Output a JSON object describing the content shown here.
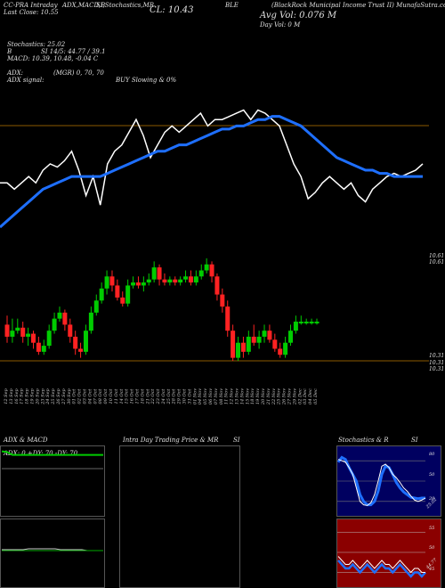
{
  "header": {
    "stock_label": "CC-PRA Intraday",
    "last_close_label": "Last Close:",
    "last_close": "10.55",
    "macd_label": "ADX,MACD,B",
    "si_label": "SI,Stochastics,MR",
    "close_label": "CL: 10.43",
    "company": "BLE",
    "company_full": "(BlackRock Municipal Income Trust II) MunafaSutra.com",
    "avg_vol": "Avg Vol: 0.076  M",
    "day_vol": "Day Vol: 0  M"
  },
  "indicators": {
    "stochastics": "Stochastics: 25.02",
    "b": "B",
    "si": "SI 14/5: 44.77 / 39.1",
    "macd": "MACD: 10.39, 10.48, -0.04  C",
    "adx": "ADX:",
    "mgr": "(MGR) 0, 70, 70",
    "adx_signal": "ADX  signal:",
    "buy": "BUY Slowing & 0%"
  },
  "labels": {
    "price_mid": "10.61",
    "price_low1": "10.31",
    "price_low2": "10.31",
    "price_low3": "10.31",
    "price_right": "10.61",
    "panel_adx": "ADX  & MACD",
    "panel_intra": "Intra  Day Trading Price  & MR",
    "panel_si": "SI",
    "panel_stoch": "Stochastics & R",
    "panel_si2": "SI",
    "adx_values": "ADX: 0  +DY: 70  -DY: 70",
    "stoch_80": "80",
    "stoch_50": "50",
    "stoch_20": "20",
    "stoch_val": "25.02",
    "rsi_55": "55",
    "rsi_50": "50",
    "rsi_45": "45",
    "rsi_val": "44.77"
  },
  "colors": {
    "up": "#00cc00",
    "down": "#ff2222",
    "ma": "#1e6fff",
    "price_line": "#ffffff",
    "ref_line": "#8b5a00",
    "rsi_bg": "#8b0000",
    "stoch_bg": "#000060"
  },
  "chart_data": {
    "type": "candlestick",
    "dates": [
      "12 Sep",
      "13 Sep",
      "16 Sep",
      "17 Sep",
      "18 Sep",
      "19 Sep",
      "20 Sep",
      "23 Sep",
      "24 Sep",
      "25 Sep",
      "26 Sep",
      "27 Sep",
      "30 Sep",
      "01 Oct",
      "02 Oct",
      "03 Oct",
      "04 Oct",
      "07 Oct",
      "08 Oct",
      "09 Oct",
      "10 Oct",
      "11 Oct",
      "14 Oct",
      "15 Oct",
      "16 Oct",
      "17 Oct",
      "18 Oct",
      "21 Oct",
      "22 Oct",
      "23 Oct",
      "24 Oct",
      "25 Oct",
      "28 Oct",
      "29 Oct",
      "30 Oct",
      "31 Oct",
      "01 Nov",
      "04 Nov",
      "05 Nov",
      "06 Nov",
      "07 Nov",
      "08 Nov",
      "11 Nov",
      "12 Nov",
      "13 Nov",
      "14 Nov",
      "15 Nov",
      "18 Nov",
      "19 Nov",
      "20 Nov",
      "21 Nov",
      "22 Nov",
      "25 Nov",
      "26 Nov",
      "27 Nov",
      "29 Nov",
      "02 Dec",
      "03 Dec",
      "04 Dec",
      "05 Dec"
    ],
    "candles": [
      [
        10.42,
        10.38,
        10.45,
        10.36
      ],
      [
        10.38,
        10.4,
        10.44,
        10.36
      ],
      [
        10.4,
        10.41,
        10.44,
        10.39
      ],
      [
        10.41,
        10.38,
        10.43,
        10.36
      ],
      [
        10.38,
        10.39,
        10.41,
        10.35
      ],
      [
        10.39,
        10.36,
        10.4,
        10.34
      ],
      [
        10.36,
        10.33,
        10.38,
        10.32
      ],
      [
        10.33,
        10.35,
        10.37,
        10.32
      ],
      [
        10.35,
        10.4,
        10.42,
        10.34
      ],
      [
        10.4,
        10.44,
        10.46,
        10.39
      ],
      [
        10.44,
        10.46,
        10.48,
        10.43
      ],
      [
        10.46,
        10.42,
        10.47,
        10.4
      ],
      [
        10.42,
        10.38,
        10.44,
        10.36
      ],
      [
        10.38,
        10.34,
        10.4,
        10.32
      ],
      [
        10.34,
        10.33,
        10.36,
        10.31
      ],
      [
        10.33,
        10.4,
        10.42,
        10.32
      ],
      [
        10.4,
        10.46,
        10.48,
        10.39
      ],
      [
        10.46,
        10.5,
        10.52,
        10.45
      ],
      [
        10.5,
        10.54,
        10.56,
        10.49
      ],
      [
        10.54,
        10.58,
        10.6,
        10.52
      ],
      [
        10.58,
        10.55,
        10.6,
        10.53
      ],
      [
        10.55,
        10.51,
        10.57,
        10.5
      ],
      [
        10.51,
        10.49,
        10.53,
        10.48
      ],
      [
        10.49,
        10.55,
        10.57,
        10.48
      ],
      [
        10.55,
        10.56,
        10.58,
        10.54
      ],
      [
        10.56,
        10.55,
        10.58,
        10.54
      ],
      [
        10.55,
        10.56,
        10.58,
        10.53
      ],
      [
        10.56,
        10.57,
        10.59,
        10.55
      ],
      [
        10.57,
        10.61,
        10.63,
        10.56
      ],
      [
        10.61,
        10.57,
        10.62,
        10.55
      ],
      [
        10.57,
        10.56,
        10.59,
        10.55
      ],
      [
        10.56,
        10.57,
        10.58,
        10.55
      ],
      [
        10.57,
        10.56,
        10.58,
        10.55
      ],
      [
        10.56,
        10.57,
        10.58,
        10.55
      ],
      [
        10.57,
        10.58,
        10.6,
        10.56
      ],
      [
        10.58,
        10.56,
        10.6,
        10.55
      ],
      [
        10.56,
        10.58,
        10.6,
        10.55
      ],
      [
        10.58,
        10.6,
        10.62,
        10.57
      ],
      [
        10.6,
        10.62,
        10.64,
        10.59
      ],
      [
        10.62,
        10.58,
        10.63,
        10.56
      ],
      [
        10.58,
        10.52,
        10.59,
        10.5
      ],
      [
        10.52,
        10.48,
        10.54,
        10.46
      ],
      [
        10.48,
        10.4,
        10.5,
        10.38
      ],
      [
        10.4,
        10.31,
        10.42,
        10.3
      ],
      [
        10.31,
        10.36,
        10.38,
        10.3
      ],
      [
        10.36,
        10.33,
        10.38,
        10.31
      ],
      [
        10.33,
        10.38,
        10.4,
        10.32
      ],
      [
        10.38,
        10.36,
        10.42,
        10.35
      ],
      [
        10.36,
        10.38,
        10.4,
        10.34
      ],
      [
        10.38,
        10.4,
        10.42,
        10.36
      ],
      [
        10.4,
        10.37,
        10.42,
        10.36
      ],
      [
        10.37,
        10.34,
        10.39,
        10.33
      ],
      [
        10.34,
        10.32,
        10.36,
        10.31
      ],
      [
        10.32,
        10.36,
        10.38,
        10.31
      ],
      [
        10.36,
        10.4,
        10.42,
        10.35
      ],
      [
        10.4,
        10.43,
        10.45,
        10.39
      ],
      [
        10.43,
        10.43,
        10.45,
        10.42
      ],
      [
        10.43,
        10.43,
        10.44,
        10.42
      ],
      [
        10.43,
        10.43,
        10.44,
        10.42
      ],
      [
        10.43,
        10.43,
        10.44,
        10.42
      ]
    ],
    "price_line": [
      10.4,
      10.4,
      10.38,
      10.4,
      10.42,
      10.4,
      10.44,
      10.46,
      10.45,
      10.47,
      10.5,
      10.44,
      10.36,
      10.42,
      10.33,
      10.46,
      10.5,
      10.52,
      10.56,
      10.6,
      10.55,
      10.48,
      10.52,
      10.56,
      10.58,
      10.56,
      10.58,
      10.6,
      10.62,
      10.58,
      10.6,
      10.6,
      10.61,
      10.62,
      10.63,
      10.6,
      10.63,
      10.62,
      10.6,
      10.58,
      10.52,
      10.46,
      10.42,
      10.35,
      10.37,
      10.4,
      10.42,
      10.4,
      10.38,
      10.4,
      10.36,
      10.34,
      10.38,
      10.4,
      10.42,
      10.43,
      10.42,
      10.43,
      10.44,
      10.46
    ],
    "ma_line": [
      10.26,
      10.28,
      10.3,
      10.32,
      10.34,
      10.36,
      10.38,
      10.39,
      10.4,
      10.41,
      10.42,
      10.42,
      10.42,
      10.42,
      10.42,
      10.43,
      10.44,
      10.45,
      10.46,
      10.47,
      10.48,
      10.49,
      10.5,
      10.5,
      10.51,
      10.52,
      10.52,
      10.53,
      10.54,
      10.55,
      10.56,
      10.57,
      10.57,
      10.58,
      10.58,
      10.59,
      10.6,
      10.6,
      10.61,
      10.61,
      10.6,
      10.59,
      10.58,
      10.56,
      10.54,
      10.52,
      10.5,
      10.48,
      10.47,
      10.46,
      10.45,
      10.44,
      10.44,
      10.43,
      10.43,
      10.42,
      10.42,
      10.42,
      10.42,
      10.42
    ],
    "stoch_line": [
      82,
      80,
      78,
      70,
      60,
      40,
      20,
      15,
      14,
      18,
      30,
      50,
      72,
      75,
      70,
      60,
      55,
      48,
      40,
      35,
      28,
      22,
      20,
      22,
      25
    ],
    "stoch_k": [
      78,
      85,
      82,
      70,
      60,
      50,
      30,
      20,
      15,
      15,
      20,
      35,
      60,
      72,
      70,
      60,
      48,
      40,
      34,
      30,
      26,
      25,
      24,
      25,
      25
    ],
    "rsi_line": [
      48,
      47,
      46,
      46,
      47,
      46,
      45,
      46,
      47,
      46,
      45,
      46,
      47,
      46,
      46,
      45,
      46,
      47,
      46,
      45,
      44,
      45,
      45,
      44,
      45
    ],
    "rsi_white": [
      49,
      48,
      47,
      47,
      48,
      47,
      46,
      47,
      48,
      47,
      46,
      47,
      48,
      47,
      47,
      46,
      47,
      48,
      47,
      46,
      45,
      46,
      46,
      45,
      45
    ],
    "adx_green": [
      70,
      69,
      64,
      64,
      64,
      64,
      64,
      64,
      64,
      64,
      64,
      64,
      64,
      64,
      64,
      64,
      64,
      64,
      64,
      64
    ],
    "macd_line": [
      10.4,
      10.4,
      10.4,
      10.4,
      10.4,
      10.41,
      10.41,
      10.41,
      10.41,
      10.41,
      10.41,
      10.4,
      10.4,
      10.4,
      10.4,
      10.4,
      10.39,
      10.39,
      10.39,
      10.39
    ]
  }
}
